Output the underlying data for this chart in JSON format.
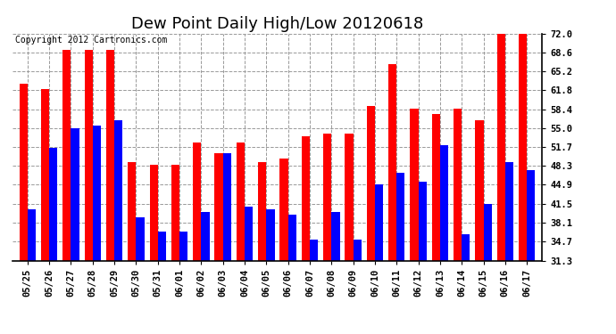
{
  "title": "Dew Point Daily High/Low 20120618",
  "copyright": "Copyright 2012 Cartronics.com",
  "categories": [
    "05/25",
    "05/26",
    "05/27",
    "05/28",
    "05/29",
    "05/30",
    "05/31",
    "06/01",
    "06/02",
    "06/03",
    "06/04",
    "06/05",
    "06/06",
    "06/07",
    "06/08",
    "06/09",
    "06/10",
    "06/11",
    "06/12",
    "06/13",
    "06/14",
    "06/15",
    "06/16",
    "06/17"
  ],
  "highs": [
    63.0,
    62.0,
    69.0,
    69.0,
    69.0,
    49.0,
    48.5,
    48.5,
    52.5,
    50.5,
    52.5,
    49.0,
    49.5,
    53.5,
    54.0,
    54.0,
    59.0,
    66.5,
    58.5,
    57.5,
    58.5,
    56.5,
    72.0,
    72.0
  ],
  "lows": [
    40.5,
    51.5,
    55.0,
    55.5,
    56.5,
    39.0,
    36.5,
    36.5,
    40.0,
    50.5,
    41.0,
    40.5,
    39.5,
    35.0,
    40.0,
    35.0,
    45.0,
    47.0,
    45.5,
    52.0,
    36.0,
    41.5,
    49.0,
    47.5
  ],
  "bar_width": 0.38,
  "high_color": "#ff0000",
  "low_color": "#0000ff",
  "bg_color": "#ffffff",
  "grid_color": "#999999",
  "ylim": [
    31.3,
    72.0
  ],
  "yticks": [
    31.3,
    34.7,
    38.1,
    41.5,
    44.9,
    48.3,
    51.7,
    55.0,
    58.4,
    61.8,
    65.2,
    68.6,
    72.0
  ],
  "title_fontsize": 13,
  "tick_fontsize": 7.5,
  "copyright_fontsize": 7
}
